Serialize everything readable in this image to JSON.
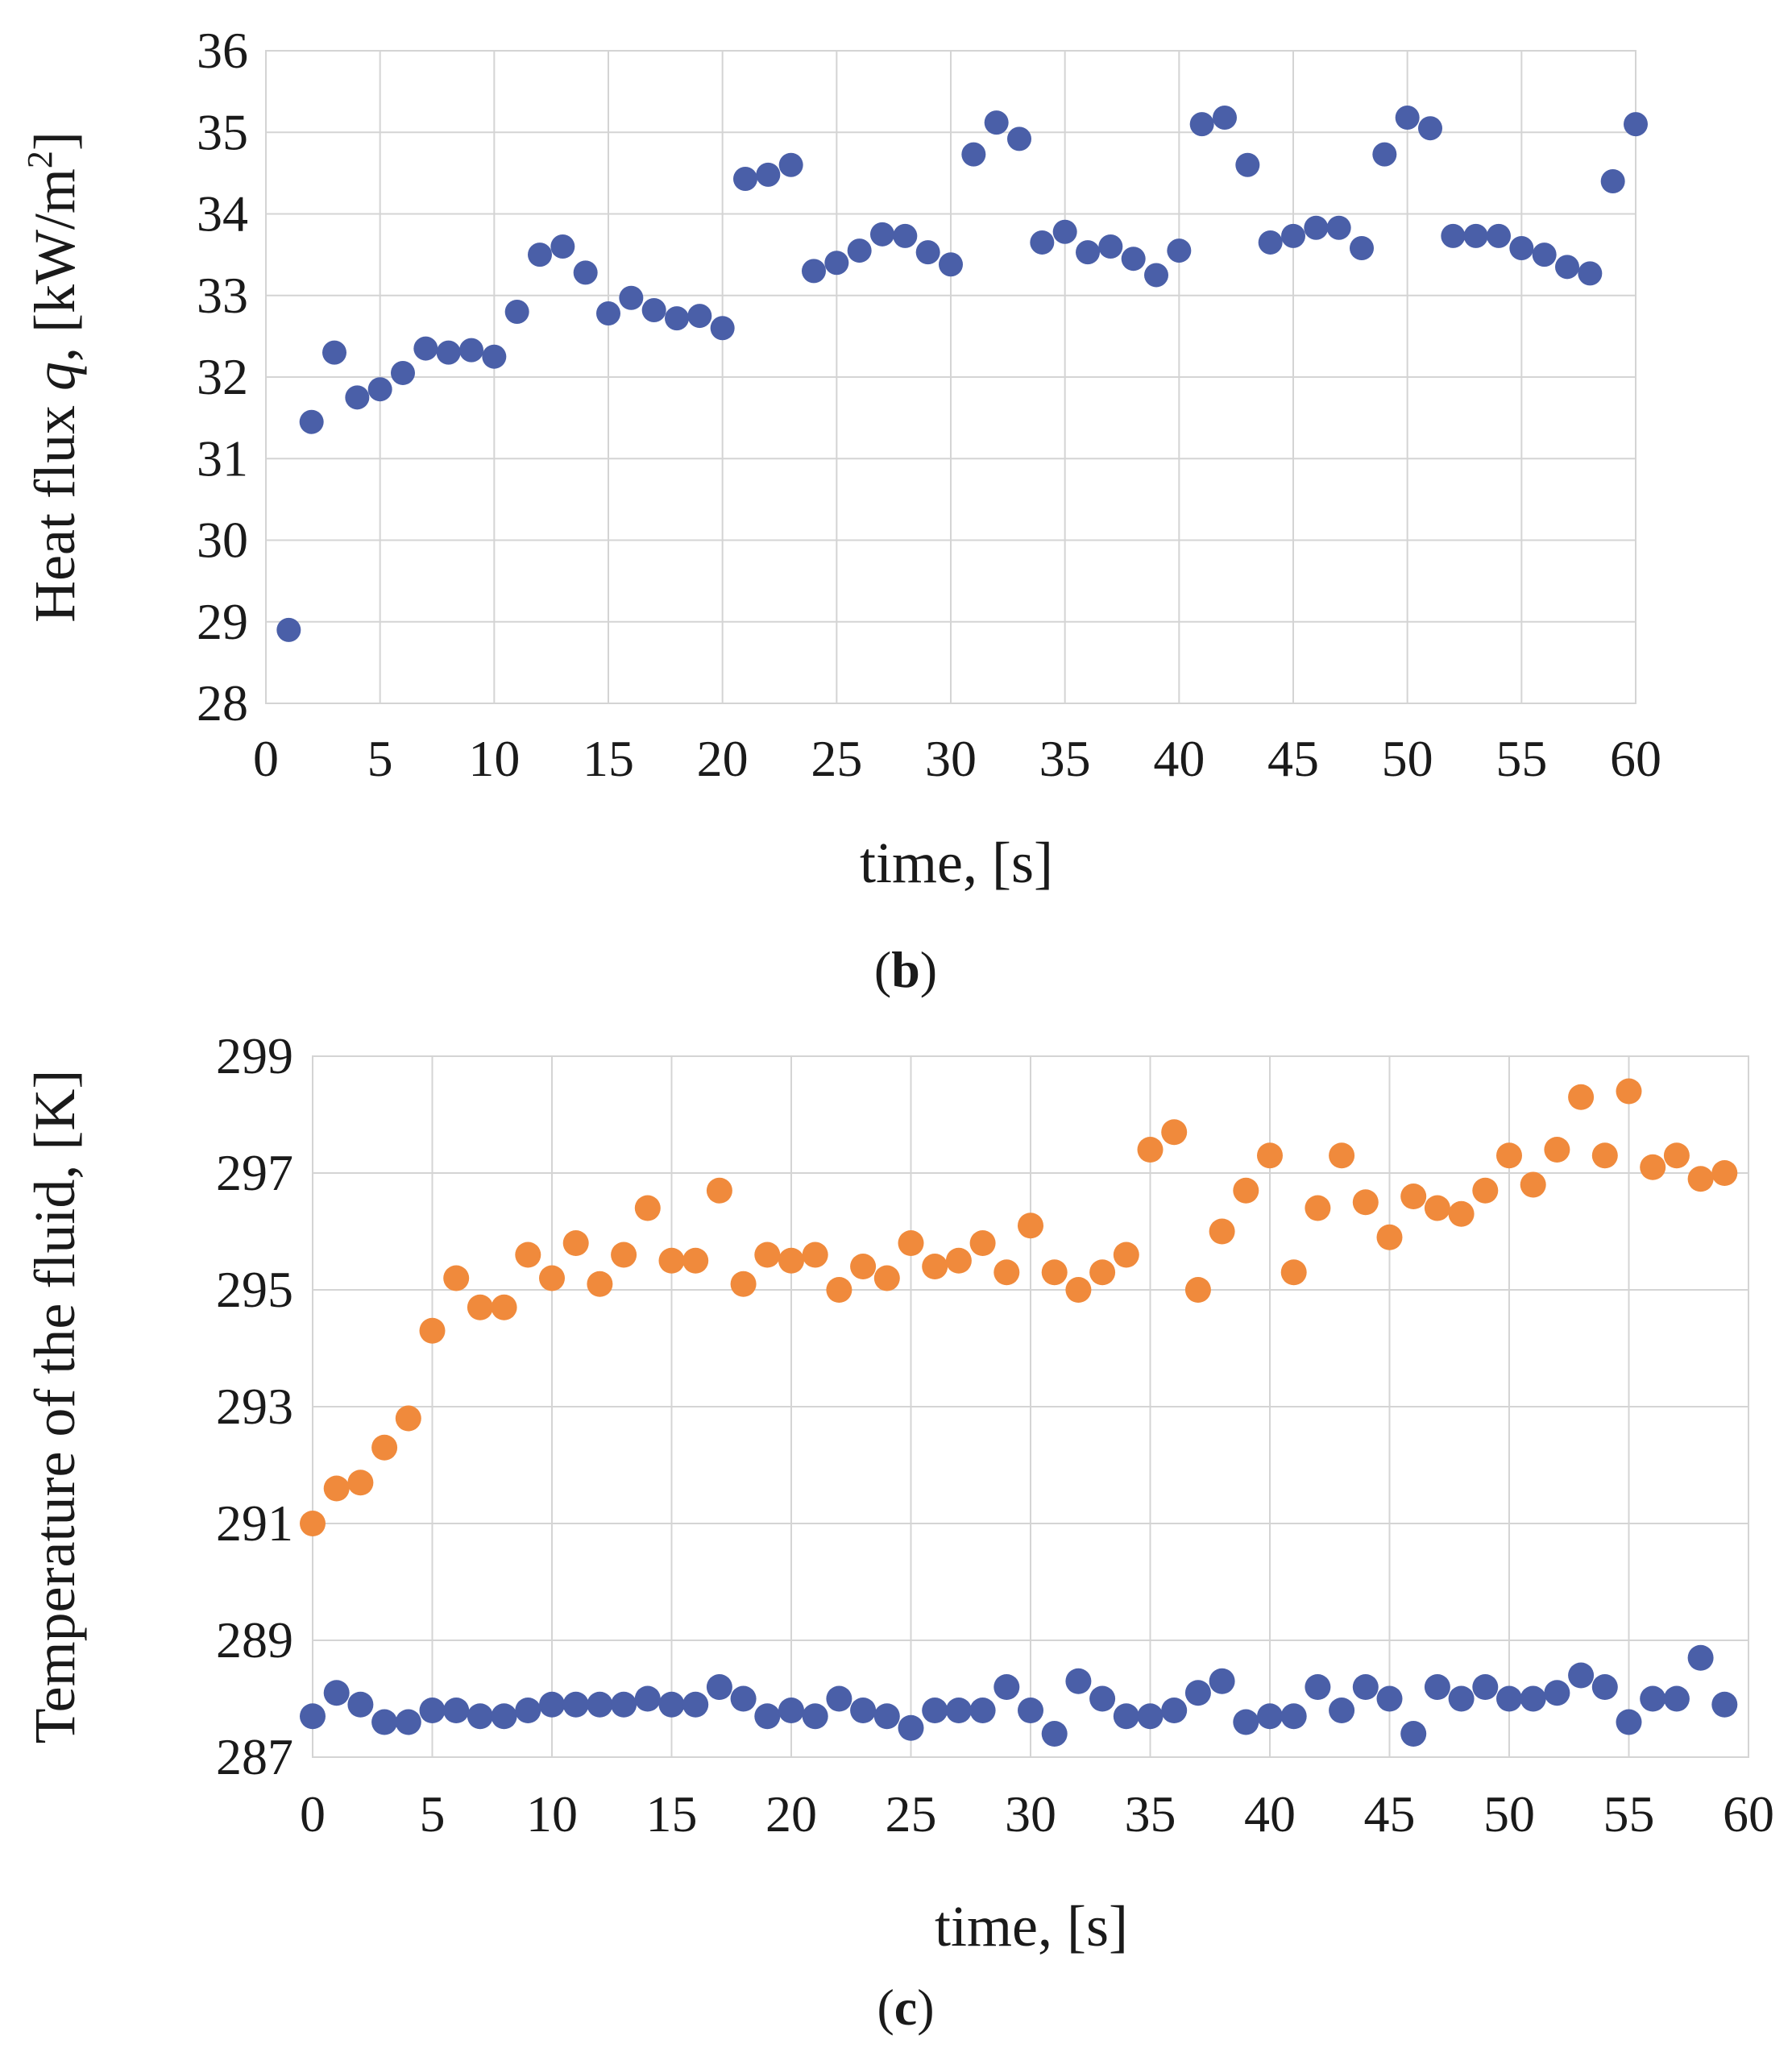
{
  "chart_data": [
    {
      "panel": "b",
      "type": "scatter",
      "caption_open": "(",
      "caption_letter": "b",
      "caption_close": ")",
      "xlabel": "time, [s]",
      "ylabel_prefix": "Heat flux ",
      "ylabel_var": "q",
      "ylabel_suffix": ", [kW/m",
      "ylabel_sup": "2",
      "ylabel_end": "]",
      "xlim": [
        0,
        60
      ],
      "ylim": [
        28,
        36
      ],
      "xticks": [
        0,
        5,
        10,
        15,
        20,
        25,
        30,
        35,
        40,
        45,
        50,
        55,
        60
      ],
      "yticks": [
        28,
        29,
        30,
        31,
        32,
        33,
        34,
        35,
        36
      ],
      "grid": true,
      "series": [
        {
          "name": "Heat flux",
          "color": "#4a5fa8",
          "x": [
            1,
            2,
            3,
            4,
            5,
            6,
            7,
            8,
            9,
            10,
            11,
            12,
            13,
            14,
            15,
            16,
            17,
            18,
            19,
            20,
            21,
            22,
            23,
            24,
            25,
            26,
            27,
            28,
            29,
            30,
            31,
            32,
            33,
            34,
            35,
            36,
            37,
            38,
            39,
            40,
            41,
            42,
            43,
            44,
            45,
            46,
            47,
            48,
            49,
            50,
            51,
            52,
            53,
            54,
            55,
            56,
            57,
            58,
            59,
            60
          ],
          "y": [
            28.9,
            31.45,
            32.3,
            31.75,
            31.85,
            32.05,
            32.35,
            32.3,
            32.33,
            32.25,
            32.8,
            33.5,
            33.6,
            33.28,
            32.78,
            32.97,
            32.82,
            32.72,
            32.75,
            32.6,
            34.43,
            34.48,
            34.6,
            33.3,
            33.4,
            33.55,
            33.75,
            33.73,
            33.53,
            33.38,
            34.73,
            35.12,
            34.92,
            33.65,
            33.78,
            33.53,
            33.6,
            33.45,
            33.25,
            33.55,
            35.1,
            35.18,
            34.6,
            33.65,
            33.73,
            33.83,
            33.83,
            33.58,
            34.73,
            35.18,
            35.05,
            33.73,
            33.73,
            33.73,
            33.58,
            33.5,
            33.35,
            33.27,
            34.4,
            35.1
          ]
        }
      ]
    },
    {
      "panel": "c",
      "type": "scatter",
      "caption_open": "(",
      "caption_letter": "c",
      "caption_close": ")",
      "xlabel": "time, [s]",
      "ylabel": "Temperature of the fluid, [K]",
      "xlim": [
        0,
        60
      ],
      "ylim": [
        287,
        299
      ],
      "xticks": [
        0,
        5,
        10,
        15,
        20,
        25,
        30,
        35,
        40,
        45,
        50,
        55,
        60
      ],
      "yticks": [
        287,
        289,
        291,
        293,
        295,
        297,
        299
      ],
      "grid": true,
      "series": [
        {
          "name": "Fluid temperature (orange)",
          "color": "#f08a3c",
          "x": [
            0,
            1,
            2,
            3,
            4,
            5,
            6,
            7,
            8,
            9,
            10,
            11,
            12,
            13,
            14,
            15,
            16,
            17,
            18,
            19,
            20,
            21,
            22,
            23,
            24,
            25,
            26,
            27,
            28,
            29,
            30,
            31,
            32,
            33,
            34,
            35,
            36,
            37,
            38,
            39,
            40,
            41,
            42,
            43,
            44,
            45,
            46,
            47,
            48,
            49,
            50,
            51,
            52,
            53,
            54,
            55,
            56,
            57,
            58,
            59
          ],
          "y": [
            291.0,
            291.6,
            291.7,
            292.3,
            292.8,
            294.3,
            295.2,
            294.7,
            294.7,
            295.6,
            295.2,
            295.8,
            295.1,
            295.6,
            296.4,
            295.5,
            295.5,
            296.7,
            295.1,
            295.6,
            295.5,
            295.6,
            295.0,
            295.4,
            295.2,
            295.8,
            295.4,
            295.5,
            295.8,
            295.3,
            296.1,
            295.3,
            295.0,
            295.3,
            295.6,
            297.4,
            297.7,
            295.0,
            296.0,
            296.7,
            297.3,
            295.3,
            296.4,
            297.3,
            296.5,
            295.9,
            296.6,
            296.4,
            296.3,
            296.7,
            297.3,
            296.8,
            297.4,
            298.3,
            297.3,
            298.4,
            297.1,
            297.3,
            296.9,
            297.0
          ]
        },
        {
          "name": "Fluid temperature (blue)",
          "color": "#4a5fa8",
          "x": [
            0,
            1,
            2,
            3,
            4,
            5,
            6,
            7,
            8,
            9,
            10,
            11,
            12,
            13,
            14,
            15,
            16,
            17,
            18,
            19,
            20,
            21,
            22,
            23,
            24,
            25,
            26,
            27,
            28,
            29,
            30,
            31,
            32,
            33,
            34,
            35,
            36,
            37,
            38,
            39,
            40,
            41,
            42,
            43,
            44,
            45,
            46,
            47,
            48,
            49,
            50,
            51,
            52,
            53,
            54,
            55,
            56,
            57,
            58,
            59
          ],
          "y": [
            287.7,
            288.1,
            287.9,
            287.6,
            287.6,
            287.8,
            287.8,
            287.7,
            287.7,
            287.8,
            287.9,
            287.9,
            287.9,
            287.9,
            288.0,
            287.9,
            287.9,
            288.2,
            288.0,
            287.7,
            287.8,
            287.7,
            288.0,
            287.8,
            287.7,
            287.5,
            287.8,
            287.8,
            287.8,
            288.2,
            287.8,
            287.4,
            288.3,
            288.0,
            287.7,
            287.7,
            287.8,
            288.1,
            288.3,
            287.6,
            287.7,
            287.7,
            288.2,
            287.8,
            288.2,
            288.0,
            287.4,
            288.2,
            288.0,
            288.2,
            288.0,
            288.0,
            288.1,
            288.4,
            288.2,
            287.6,
            288.0,
            288.0,
            288.7,
            287.9
          ]
        }
      ]
    }
  ]
}
